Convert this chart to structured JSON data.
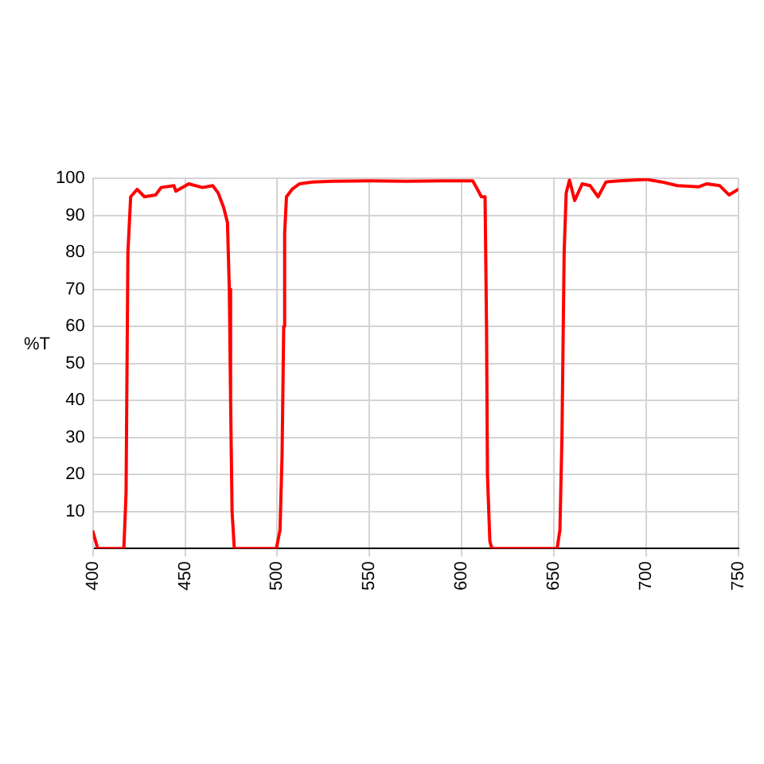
{
  "chart_data": {
    "type": "line",
    "ylabel": "%T",
    "xlim": [
      400,
      750
    ],
    "xticks": [
      400,
      450,
      500,
      550,
      600,
      650,
      700,
      750
    ],
    "ylim": [
      0,
      100
    ],
    "yticks": [
      {
        "value": 0,
        "label": null
      },
      10,
      20,
      30,
      40,
      50,
      60,
      70,
      80,
      90,
      100
    ],
    "grid": true,
    "legend": false,
    "marker": "none",
    "line_style": "solid",
    "series": [
      {
        "color": "#ff0000",
        "x": [
          400,
          402.6,
          416.8,
          418,
          419,
          420.5,
          424,
          428,
          434,
          437,
          444,
          445,
          452,
          459.5,
          465,
          468,
          471,
          473,
          474,
          474.7,
          475.5,
          476.7,
          499.5,
          501.5,
          502.6,
          503.5,
          504,
          505,
          508,
          512,
          519,
          530,
          550,
          570,
          590,
          606,
          608.6,
          610.7,
          612.7,
          613.5,
          614,
          615.3,
          616.4,
          651.8,
          653.3,
          654.4,
          655.6,
          656.7,
          658.5,
          661.3,
          665.4,
          669.7,
          674,
          678.3,
          685.5,
          700,
          708.6,
          717,
          728.7,
          733,
          740,
          745,
          750
        ],
        "values": [
          4.6,
          0,
          0,
          15,
          80,
          95,
          97,
          95,
          95.5,
          97.5,
          98,
          96.5,
          98.5,
          97.5,
          98,
          96,
          92,
          88,
          70,
          40,
          10,
          0,
          0,
          5,
          25,
          60,
          85,
          95,
          97,
          98.5,
          99,
          99.2,
          99.3,
          99.2,
          99.3,
          99.3,
          97,
          95,
          95,
          60,
          20,
          2,
          0,
          0,
          5,
          30,
          80,
          96,
          99.5,
          94,
          98.5,
          98,
          95,
          99,
          99.3,
          99.7,
          99,
          98,
          97.7,
          98.5,
          98,
          95.5,
          97
        ]
      }
    ]
  }
}
